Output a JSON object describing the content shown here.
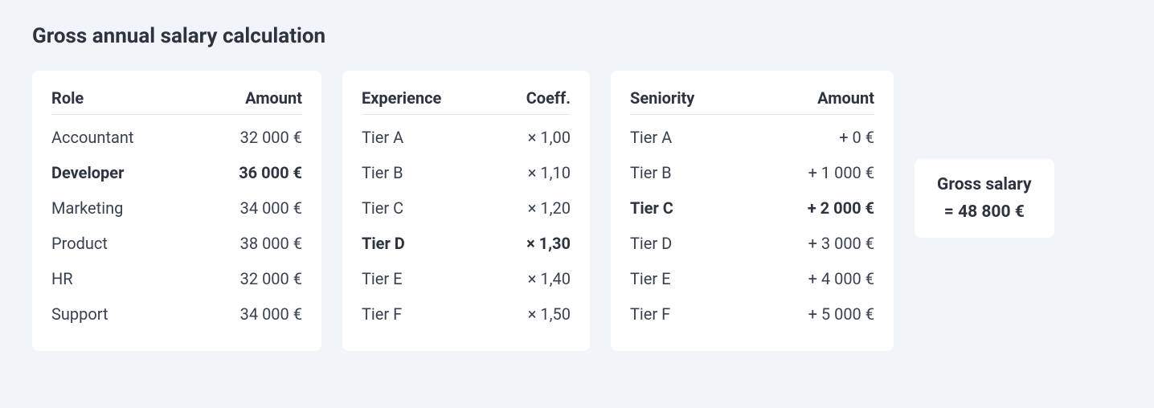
{
  "title": "Gross annual salary calculation",
  "role_card": {
    "header_left": "Role",
    "header_right": "Amount",
    "rows": [
      {
        "label": "Accountant",
        "value": "32 000 €",
        "selected": false
      },
      {
        "label": "Developer",
        "value": "36 000 €",
        "selected": true
      },
      {
        "label": "Marketing",
        "value": "34 000 €",
        "selected": false
      },
      {
        "label": "Product",
        "value": "38 000 €",
        "selected": false
      },
      {
        "label": "HR",
        "value": "32 000 €",
        "selected": false
      },
      {
        "label": "Support",
        "value": "34 000 €",
        "selected": false
      }
    ]
  },
  "experience_card": {
    "header_left": "Experience",
    "header_right": "Coeff.",
    "rows": [
      {
        "label": "Tier A",
        "value": "× 1,00",
        "selected": false
      },
      {
        "label": "Tier B",
        "value": "× 1,10",
        "selected": false
      },
      {
        "label": "Tier C",
        "value": "× 1,20",
        "selected": false
      },
      {
        "label": "Tier D",
        "value": "× 1,30",
        "selected": true
      },
      {
        "label": "Tier E",
        "value": "× 1,40",
        "selected": false
      },
      {
        "label": "Tier F",
        "value": "× 1,50",
        "selected": false
      }
    ]
  },
  "seniority_card": {
    "header_left": "Seniority",
    "header_right": "Amount",
    "rows": [
      {
        "label": "Tier A",
        "value": "+ 0 €",
        "selected": false
      },
      {
        "label": "Tier B",
        "value": "+ 1 000 €",
        "selected": false
      },
      {
        "label": "Tier C",
        "value": "+ 2 000 €",
        "selected": true
      },
      {
        "label": "Tier D",
        "value": "+ 3 000 €",
        "selected": false
      },
      {
        "label": "Tier E",
        "value": "+ 4 000 €",
        "selected": false
      },
      {
        "label": "Tier F",
        "value": "+ 5 000 €",
        "selected": false
      }
    ]
  },
  "result": {
    "label": "Gross salary",
    "value": "= 48 800 €"
  },
  "colors": {
    "page_bg": "#f1f4f8",
    "card_bg": "#ffffff",
    "text_primary": "#2d3440",
    "text_secondary": "#394150",
    "divider": "#e1e5ea"
  }
}
